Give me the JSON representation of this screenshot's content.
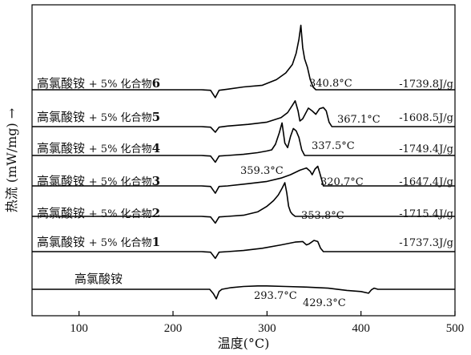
{
  "chart_data": {
    "type": "line",
    "title": "",
    "xlabel": "温度(°C)",
    "ylabel": "热流 (mW/mg) →",
    "xlim": [
      50,
      500
    ],
    "x_ticks": [
      100,
      200,
      300,
      400,
      500
    ],
    "grid": false,
    "series": [
      {
        "label_prefix": "高氯酸铵 ",
        "label_suffix": "+ 5% 化合物",
        "label_number": "6",
        "peak_label": "340.8°C",
        "heat": "-1739.8J/g",
        "points": [
          [
            50,
            0
          ],
          [
            230,
            0
          ],
          [
            240,
            1
          ],
          [
            245,
            14
          ],
          [
            249,
            1
          ],
          [
            258,
            -1
          ],
          [
            275,
            -5
          ],
          [
            295,
            -8
          ],
          [
            310,
            -18
          ],
          [
            320,
            -30
          ],
          [
            327,
            -45
          ],
          [
            331,
            -65
          ],
          [
            334,
            -90
          ],
          [
            336,
            -115
          ],
          [
            338,
            -75
          ],
          [
            340,
            -55
          ],
          [
            343,
            -40
          ],
          [
            346,
            -18
          ],
          [
            349,
            -5
          ],
          [
            352,
            0
          ],
          [
            500,
            0
          ]
        ]
      },
      {
        "label_prefix": "高氯酸铵 ",
        "label_suffix": "+ 5% 化合物",
        "label_number": "5",
        "peak_label": "367.1°C",
        "heat": "-1608.5J/g",
        "points": [
          [
            50,
            0
          ],
          [
            230,
            0
          ],
          [
            240,
            1
          ],
          [
            245,
            10
          ],
          [
            249,
            1
          ],
          [
            258,
            -1
          ],
          [
            280,
            -4
          ],
          [
            300,
            -8
          ],
          [
            315,
            -16
          ],
          [
            322,
            -25
          ],
          [
            327,
            -38
          ],
          [
            330,
            -46
          ],
          [
            333,
            -28
          ],
          [
            335,
            -10
          ],
          [
            338,
            -14
          ],
          [
            344,
            -33
          ],
          [
            348,
            -28
          ],
          [
            352,
            -22
          ],
          [
            356,
            -32
          ],
          [
            360,
            -34
          ],
          [
            363,
            -28
          ],
          [
            366,
            -8
          ],
          [
            369,
            0
          ],
          [
            500,
            0
          ]
        ]
      },
      {
        "label_prefix": "高氯酸铵 ",
        "label_suffix": "+ 5% 化合物",
        "label_number": "4",
        "peak_label": "337.5°C",
        "heat": "-1749.4J/g",
        "points": [
          [
            50,
            0
          ],
          [
            230,
            0
          ],
          [
            240,
            1
          ],
          [
            245,
            12
          ],
          [
            249,
            1
          ],
          [
            258,
            0
          ],
          [
            275,
            -2
          ],
          [
            290,
            -5
          ],
          [
            300,
            -8
          ],
          [
            305,
            -10
          ],
          [
            309,
            -20
          ],
          [
            313,
            -40
          ],
          [
            316,
            -58
          ],
          [
            319,
            -22
          ],
          [
            322,
            -14
          ],
          [
            325,
            -34
          ],
          [
            328,
            -48
          ],
          [
            331,
            -44
          ],
          [
            334,
            -32
          ],
          [
            337,
            -10
          ],
          [
            340,
            0
          ],
          [
            500,
            0
          ]
        ]
      },
      {
        "label_prefix": "高氯酸铵 ",
        "label_suffix": "+ 5% 化合物",
        "label_number": "3",
        "peak_label": "359.3°C",
        "heat": "-1647.4J/g",
        "points": [
          [
            50,
            0
          ],
          [
            230,
            0
          ],
          [
            240,
            1
          ],
          [
            245,
            13
          ],
          [
            249,
            1
          ],
          [
            258,
            0
          ],
          [
            280,
            -4
          ],
          [
            300,
            -8
          ],
          [
            315,
            -14
          ],
          [
            325,
            -20
          ],
          [
            335,
            -28
          ],
          [
            342,
            -32
          ],
          [
            346,
            -26
          ],
          [
            348,
            -20
          ],
          [
            351,
            -30
          ],
          [
            354,
            -35
          ],
          [
            356,
            -24
          ],
          [
            358,
            -12
          ],
          [
            360,
            0
          ],
          [
            500,
            0
          ]
        ]
      },
      {
        "label_prefix": "高氯酸铵 ",
        "label_suffix": "+ 5% 化合物",
        "label_number": "2",
        "peak_label": "320.7°C",
        "heat": "-1715.4J/g",
        "points": [
          [
            50,
            0
          ],
          [
            230,
            0
          ],
          [
            240,
            1
          ],
          [
            245,
            12
          ],
          [
            249,
            1
          ],
          [
            258,
            0
          ],
          [
            275,
            -2
          ],
          [
            290,
            -8
          ],
          [
            300,
            -18
          ],
          [
            307,
            -28
          ],
          [
            312,
            -38
          ],
          [
            316,
            -50
          ],
          [
            319,
            -60
          ],
          [
            321,
            -42
          ],
          [
            323,
            -18
          ],
          [
            325,
            -8
          ],
          [
            327,
            -4
          ],
          [
            330,
            0
          ],
          [
            500,
            0
          ]
        ]
      },
      {
        "label_prefix": "高氯酸铵 ",
        "label_suffix": "+ 5% 化合物",
        "label_number": "1",
        "peak_label": "353.8°C",
        "heat": "-1737.3J/g",
        "points": [
          [
            50,
            0
          ],
          [
            230,
            0
          ],
          [
            240,
            1
          ],
          [
            245,
            12
          ],
          [
            249,
            1
          ],
          [
            258,
            0
          ],
          [
            275,
            -2
          ],
          [
            295,
            -6
          ],
          [
            315,
            -12
          ],
          [
            330,
            -17
          ],
          [
            338,
            -18
          ],
          [
            342,
            -12
          ],
          [
            345,
            -14
          ],
          [
            350,
            -20
          ],
          [
            354,
            -18
          ],
          [
            357,
            -6
          ],
          [
            360,
            0
          ],
          [
            500,
            0
          ]
        ]
      },
      {
        "label": "高氯酸铵",
        "peak_label": "293.7°C",
        "end_label": "429.3°C",
        "points": [
          [
            50,
            0
          ],
          [
            232,
            0
          ],
          [
            239,
            0
          ],
          [
            243,
            8
          ],
          [
            246,
            17
          ],
          [
            249,
            4
          ],
          [
            252,
            0
          ],
          [
            262,
            -3
          ],
          [
            275,
            -5
          ],
          [
            290,
            -6
          ],
          [
            300,
            -6
          ],
          [
            320,
            -5
          ],
          [
            340,
            -4
          ],
          [
            365,
            -2
          ],
          [
            385,
            2
          ],
          [
            400,
            4
          ],
          [
            408,
            7
          ],
          [
            411,
            1
          ],
          [
            414,
            -2
          ],
          [
            418,
            0
          ],
          [
            500,
            0
          ]
        ]
      }
    ]
  }
}
